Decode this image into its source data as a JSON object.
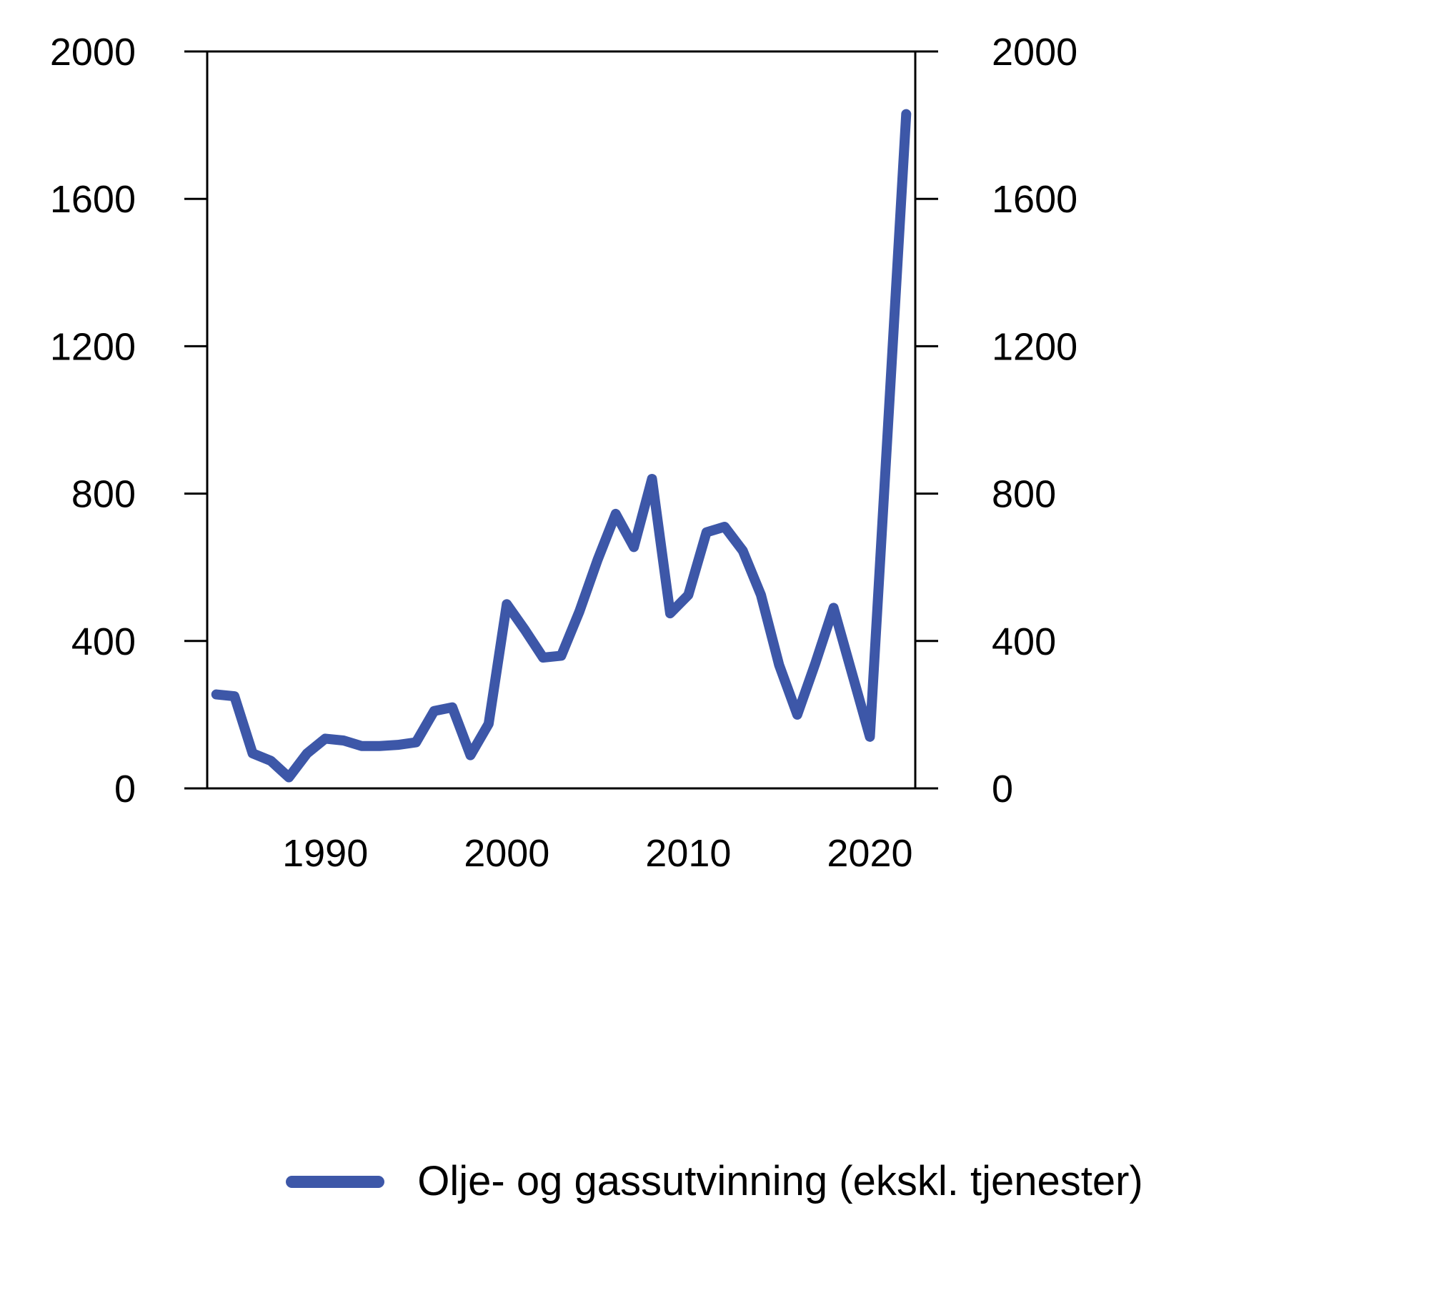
{
  "chart_data": {
    "type": "line",
    "title": "",
    "xlabel": "",
    "ylabel": "",
    "xlim": [
      1983.5,
      2022.5
    ],
    "ylim": [
      0,
      2000
    ],
    "yticks": [
      0,
      400,
      800,
      1200,
      1600,
      2000
    ],
    "xticks": [
      1990,
      2000,
      2010,
      2020
    ],
    "grid": false,
    "legend_position": "bottom",
    "axis_color": "#000000",
    "line_color": "#3d57a8",
    "series": [
      {
        "name": "Olje- og gassutvinning (ekskl. tjenester)",
        "x": [
          1984,
          1985,
          1986,
          1987,
          1988,
          1989,
          1990,
          1991,
          1992,
          1993,
          1994,
          1995,
          1996,
          1997,
          1998,
          1999,
          2000,
          2001,
          2002,
          2003,
          2004,
          2005,
          2006,
          2007,
          2008,
          2009,
          2010,
          2011,
          2012,
          2013,
          2014,
          2015,
          2016,
          2017,
          2018,
          2019,
          2020,
          2021,
          2022
        ],
        "values": [
          255,
          250,
          95,
          75,
          30,
          95,
          135,
          130,
          115,
          115,
          118,
          125,
          210,
          220,
          90,
          175,
          500,
          430,
          355,
          360,
          480,
          620,
          745,
          655,
          840,
          475,
          525,
          695,
          710,
          645,
          525,
          335,
          200,
          340,
          490,
          315,
          140,
          985,
          1830
        ]
      }
    ]
  }
}
